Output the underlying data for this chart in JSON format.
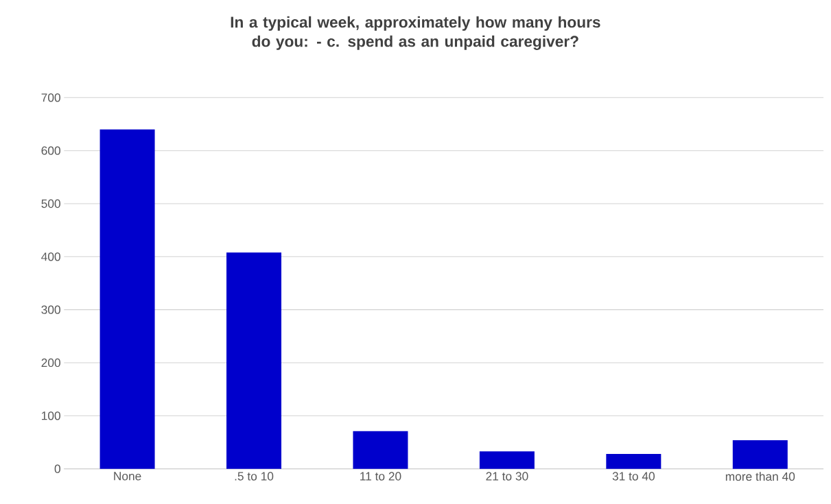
{
  "chart_data": {
    "type": "bar",
    "title": "In a typical week, approximately how many hours do you: - c. spend as an unpaid caregiver?",
    "categories": [
      "None",
      ".5 to 10",
      "11 to 20",
      "21 to 30",
      "31 to 40",
      "more than 40"
    ],
    "values": [
      640,
      408,
      71,
      33,
      28,
      54
    ],
    "color": "#0000cc",
    "ylim": [
      0,
      700
    ],
    "yticks": [
      0,
      100,
      200,
      300,
      400,
      500,
      600,
      700
    ],
    "grid": "y"
  }
}
